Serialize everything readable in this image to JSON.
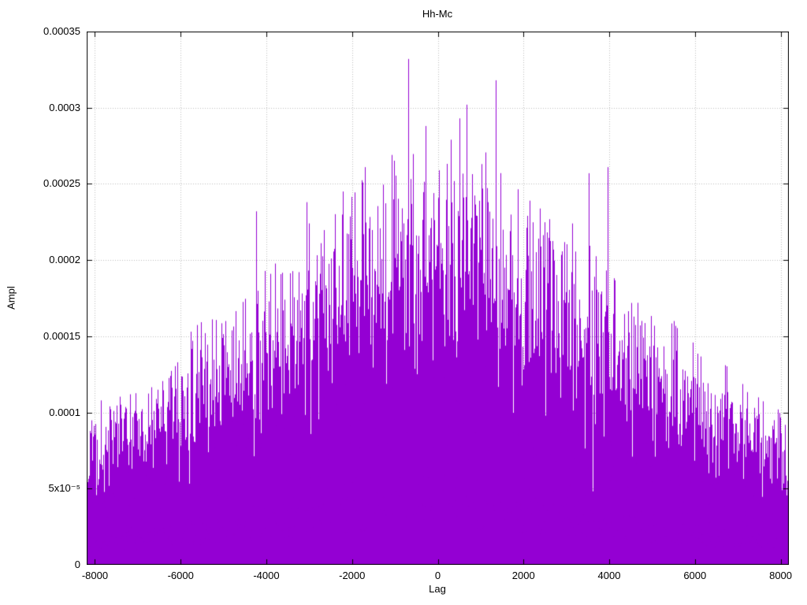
{
  "page": {
    "background": "#ffffff",
    "grid_color": "#bdbdbd",
    "axis_color": "#000000"
  },
  "chart_data": {
    "type": "bar",
    "style": "impulses",
    "title": "Hh-Mc",
    "xlabel": "Lag",
    "ylabel": "Ampl",
    "xlim": [
      -8192,
      8192
    ],
    "ylim": [
      0,
      0.00035
    ],
    "grid": true,
    "legend": "none",
    "x_ticks": [
      -8000,
      -6000,
      -4000,
      -2000,
      0,
      2000,
      4000,
      6000,
      8000
    ],
    "x_tick_labels": [
      "-8000",
      "-6000",
      "-4000",
      "-2000",
      "0",
      "2000",
      "4000",
      "6000",
      "8000"
    ],
    "y_ticks": [
      0,
      5e-05,
      0.0001,
      0.00015,
      0.0002,
      0.00025,
      0.0003,
      0.00035
    ],
    "y_tick_labels": [
      "0",
      "5x10⁻⁵",
      "0.0001",
      "0.00015",
      "0.0002",
      "0.00025",
      "0.0003",
      "0.00035"
    ],
    "series": [
      {
        "name": "Hh-Mc",
        "color": "#9400d3",
        "description": "Dense cross-correlation impulse spikes with triangular envelope peaking near lag 0",
        "envelope": {
          "lag": [
            -8192,
            -8000,
            -7000,
            -6000,
            -5000,
            -4000,
            -3000,
            -2000,
            -1000,
            0,
            1000,
            2000,
            3000,
            4000,
            5000,
            6000,
            7000,
            8000,
            8192
          ],
          "max_ampl": [
            8e-05,
            8.5e-05,
            0.0001,
            0.00012,
            0.00014,
            0.000165,
            0.000185,
            0.000205,
            0.000225,
            0.00023,
            0.000225,
            0.000205,
            0.000185,
            0.000165,
            0.00014,
            0.00012,
            0.0001,
            8.5e-05,
            8e-05
          ]
        },
        "peaks": [
          {
            "lag": -7180,
            "ampl": 0.000108
          },
          {
            "lag": -5770,
            "ampl": 0.000153
          },
          {
            "lag": -4950,
            "ampl": 0.00016
          },
          {
            "lag": -4240,
            "ampl": 0.000232
          },
          {
            "lag": -3060,
            "ampl": 0.000238
          },
          {
            "lag": -2220,
            "ampl": 0.000245
          },
          {
            "lag": -1700,
            "ampl": 0.000261
          },
          {
            "lag": -1080,
            "ampl": 0.000269
          },
          {
            "lag": -690,
            "ampl": 0.000332
          },
          {
            "lag": -290,
            "ampl": 0.000288
          },
          {
            "lag": 510,
            "ampl": 0.000293
          },
          {
            "lag": 670,
            "ampl": 0.000302
          },
          {
            "lag": 1020,
            "ampl": 0.000263
          },
          {
            "lag": 1350,
            "ampl": 0.000318
          },
          {
            "lag": 2140,
            "ampl": 0.000239
          },
          {
            "lag": 3520,
            "ampl": 0.000257
          },
          {
            "lag": 3960,
            "ampl": 0.000261
          },
          {
            "lag": 5510,
            "ampl": 0.00016
          },
          {
            "lag": 6700,
            "ampl": 0.000131
          }
        ],
        "noise_seed": 12345
      }
    ]
  }
}
